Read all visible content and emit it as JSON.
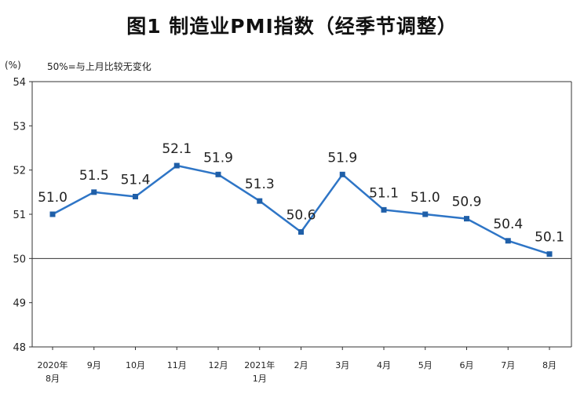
{
  "chart_data": {
    "type": "line",
    "title": "图1 制造业PMI指数（经季节调整）",
    "unit_label": "(%)",
    "note": "50%=与上月比较无变化",
    "ylim": [
      48,
      54
    ],
    "yticks": [
      48,
      49,
      50,
      51,
      52,
      53,
      54
    ],
    "reference_line": 50,
    "categories": [
      [
        "2020年",
        "8月"
      ],
      [
        "9月"
      ],
      [
        "10月"
      ],
      [
        "11月"
      ],
      [
        "12月"
      ],
      [
        "2021年",
        "1月"
      ],
      [
        "2月"
      ],
      [
        "3月"
      ],
      [
        "4月"
      ],
      [
        "5月"
      ],
      [
        "6月"
      ],
      [
        "7月"
      ],
      [
        "8月"
      ]
    ],
    "series": [
      {
        "values": [
          51.0,
          51.5,
          51.4,
          52.1,
          51.9,
          51.3,
          50.6,
          51.9,
          51.1,
          51.0,
          50.9,
          50.4,
          50.1
        ],
        "labels": [
          "51.0",
          "51.5",
          "51.4",
          "52.1",
          "51.9",
          "51.3",
          "50.6",
          "51.9",
          "51.1",
          "51.0",
          "50.9",
          "50.4",
          "50.1"
        ]
      }
    ],
    "colors": {
      "line": "#2e75c6",
      "marker": "#1f5fa8",
      "axis": "#333333",
      "text": "#222222"
    }
  }
}
